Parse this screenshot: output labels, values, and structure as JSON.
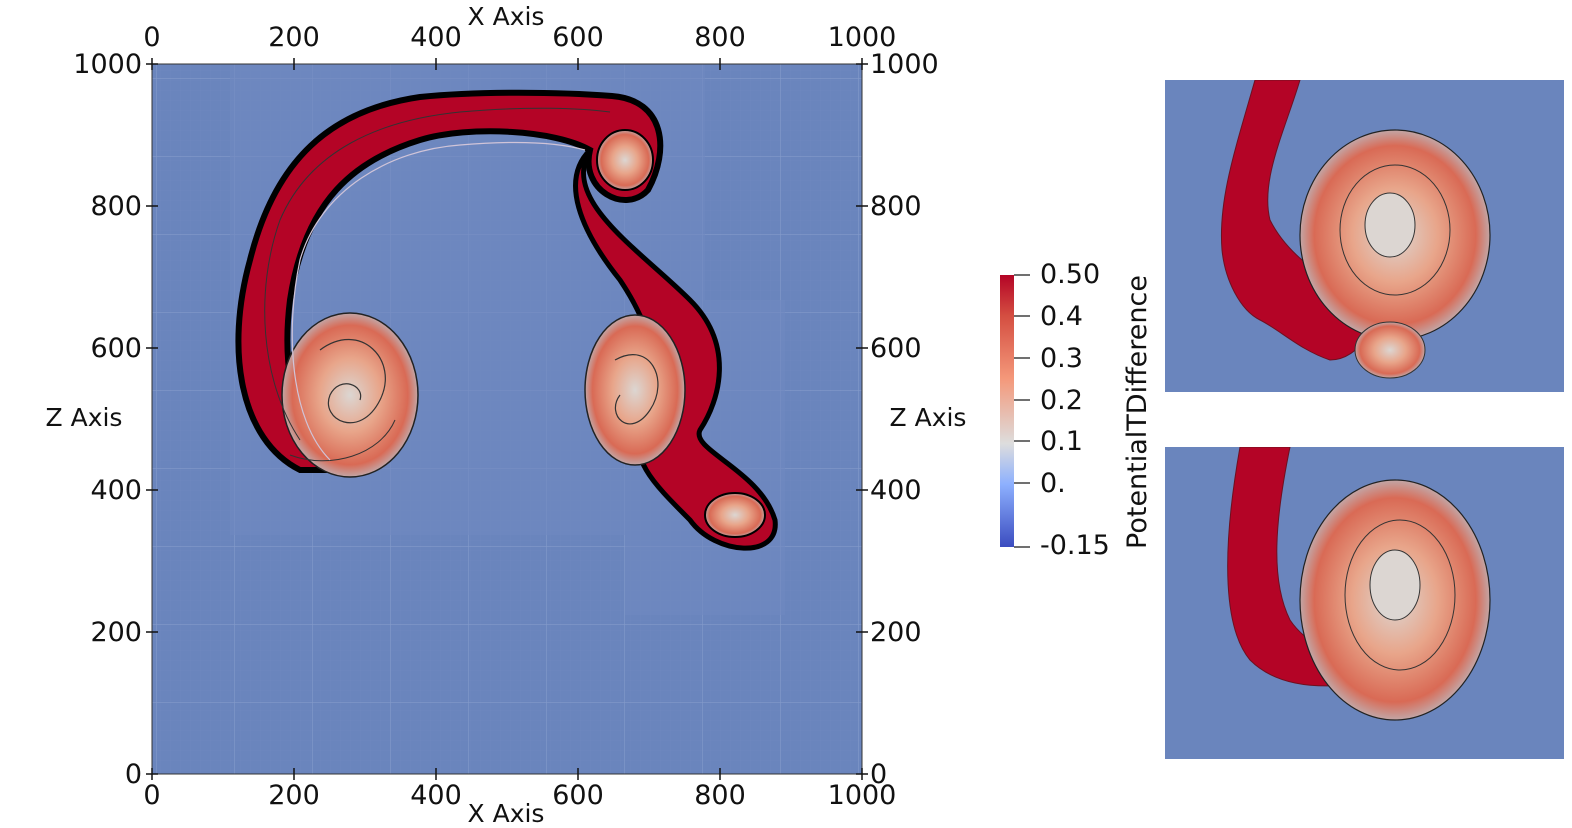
{
  "main_plot": {
    "x_axis_title": "X Axis",
    "z_axis_title": "Z Axis",
    "x_ticks": [
      "0",
      "200",
      "400",
      "600",
      "800",
      "1000"
    ],
    "z_ticks": [
      "0",
      "200",
      "400",
      "600",
      "800",
      "1000"
    ],
    "range": [
      0,
      1000
    ],
    "background_color": "#6a85bd"
  },
  "colorbar": {
    "title": "PotentialTDifference",
    "labels": [
      "0.50",
      "0.4",
      "0.3",
      "0.2",
      "0.1",
      "0.",
      "-0.15"
    ],
    "range": [
      -0.15,
      0.5
    ],
    "colors": {
      "low": "#3b4cc0",
      "mid": "#dddddd",
      "high": "#b40426"
    }
  },
  "insets": [
    {
      "name": "inset-top"
    },
    {
      "name": "inset-bottom"
    }
  ]
}
